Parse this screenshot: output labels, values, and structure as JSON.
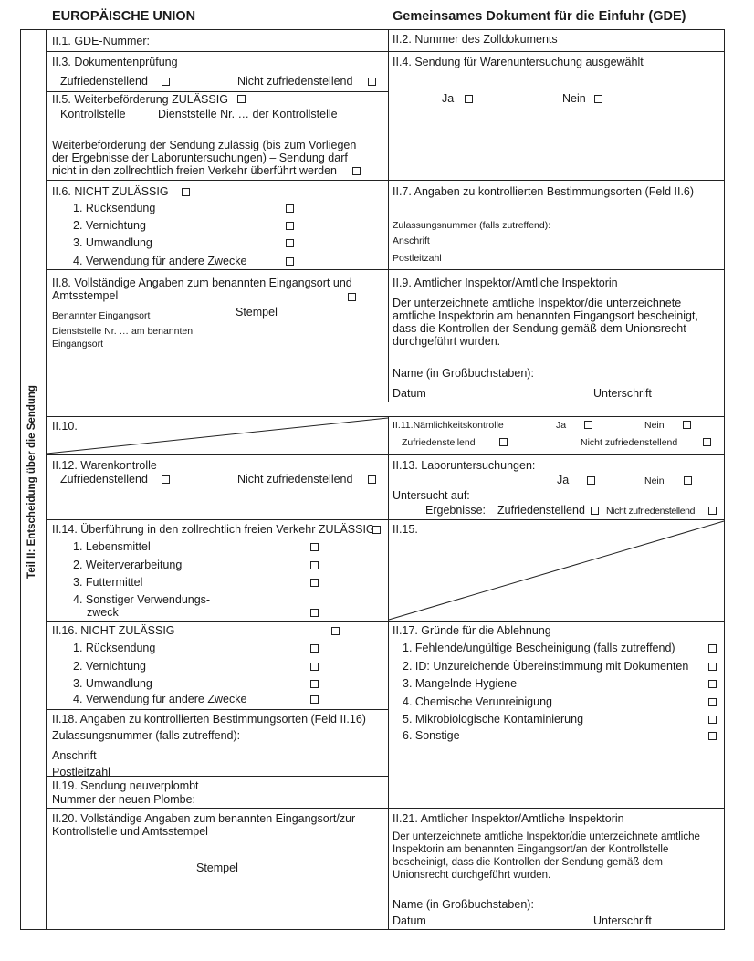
{
  "header": {
    "left": "EUROPÄISCHE UNION",
    "right": "Gemeinsames Dokument für die Einfuhr (GDE)"
  },
  "side_label": "Teil II: Entscheidung über die Sendung",
  "f1": "II.1. GDE-Nummer:",
  "f2": "II.2. Nummer des Zolldokuments",
  "f3": {
    "title": "II.3. Dokumentenprüfung",
    "ok": "Zufriedenstellend",
    "nok": "Nicht zufriedenstellend"
  },
  "f4": {
    "title": "II.4. Sendung für Warenuntersuchung ausgewählt",
    "yes": "Ja",
    "no": "Nein"
  },
  "f5": {
    "title": "II.5. Weiterbeförderung ZULÄSSIG",
    "a": "Kontrollstelle",
    "b": "Dienststelle Nr. … der Kontrollstelle",
    "text": "Weiterbeförderung der Sendung zulässig (bis zum Vorliegen der Ergebnisse der Laboruntersuchungen) – Sendung darf nicht in den zollrechtlich freien Verkehr überführt werden"
  },
  "f6": {
    "title": "II.6. NICHT ZULÄSSIG",
    "items": [
      "1. Rücksendung",
      "2. Vernichtung",
      "3. Umwandlung",
      "4. Verwendung für andere Zwecke"
    ]
  },
  "f7": {
    "title": "II.7. Angaben zu kontrollierten Bestimmungsorten (Feld II.6)",
    "a": "Zulassungsnummer (falls zutreffend):",
    "b": "Anschrift",
    "c": "Postleitzahl"
  },
  "f8": {
    "title": "II.8. Vollständige Angaben zum benannten Eingangsort und Amtsstempel",
    "a": "Benannter Eingangsort",
    "stamp": "Stempel",
    "b": "Dienststelle Nr. … am benannten Eingangsort"
  },
  "f9": {
    "title": "II.9. Amtlicher Inspektor/Amtliche Inspektorin",
    "text": "Der unterzeichnete amtliche Inspektor/die unterzeichnete amtliche Inspektorin am benannten Eingangsort bescheinigt, dass die Kontrollen der Sendung gemäß dem Unionsrecht durchgeführt wurden.",
    "name": "Name (in Großbuchstaben):",
    "date": "Datum",
    "sign": "Unterschrift"
  },
  "f10": "II.10.",
  "f11": {
    "title": "II.11.Nämlichkeitskontrolle",
    "yes": "Ja",
    "no": "Nein",
    "ok": "Zufriedenstellend",
    "nok": "Nicht zufriedenstellend"
  },
  "f12": {
    "title": "II.12. Warenkontrolle",
    "ok": "Zufriedenstellend",
    "nok": "Nicht zufriedenstellend"
  },
  "f13": {
    "title": "II.13. Laboruntersuchungen:",
    "yes": "Ja",
    "no": "Nein",
    "tested": "Untersucht auf:",
    "results": "Ergebnisse:",
    "ok": "Zufriedenstellend",
    "nok": "Nicht zufriedenstellend"
  },
  "f14": {
    "title": "II.14. Überführung in den zollrechtlich freien Verkehr ZULÄSSIG",
    "items": [
      "1. Lebensmittel",
      "2. Weiterverarbeitung",
      "3. Futtermittel",
      "4. Sonstiger Verwendungs-"
    ],
    "cont": "zweck"
  },
  "f15": "II.15.",
  "f16": {
    "title": "II.16. NICHT ZULÄSSIG",
    "items": [
      "1. Rücksendung",
      "2. Vernichtung",
      "3. Umwandlung",
      "4. Verwendung für andere Zwecke"
    ]
  },
  "f17": {
    "title": "II.17. Gründe für die Ablehnung",
    "items": [
      "1. Fehlende/ungültige Bescheinigung (falls zutreffend)",
      "2. ID: Unzureichende Übereinstimmung mit Dokumenten",
      "3. Mangelnde Hygiene",
      "4. Chemische Verunreinigung",
      "5. Mikrobiologische Kontaminierung",
      "6. Sonstige"
    ]
  },
  "f18": {
    "title": "II.18. Angaben zu kontrollierten Bestimmungsorten (Feld II.16)",
    "a": "Zulassungsnummer (falls zutreffend):",
    "b": "Anschrift",
    "c": "Postleitzahl"
  },
  "f19": {
    "title": "II.19. Sendung neuverplombt",
    "a": "Nummer der neuen Plombe:"
  },
  "f20": {
    "title": "II.20. Vollständige Angaben zum benannten Eingangsort/zur Kontrollstelle und Amtsstempel",
    "stamp": "Stempel"
  },
  "f21": {
    "title": "II.21. Amtlicher Inspektor/Amtliche Inspektorin",
    "text": "Der unterzeichnete amtliche Inspektor/die unterzeichnete amtliche Inspektorin am benannten Eingangsort/an der Kontrollstelle bescheinigt, dass die Kontrollen der Sendung gemäß dem Unionsrecht durchgeführt wurden.",
    "name": "Name (in Großbuchstaben):",
    "date": "Datum",
    "sign": "Unterschrift"
  }
}
